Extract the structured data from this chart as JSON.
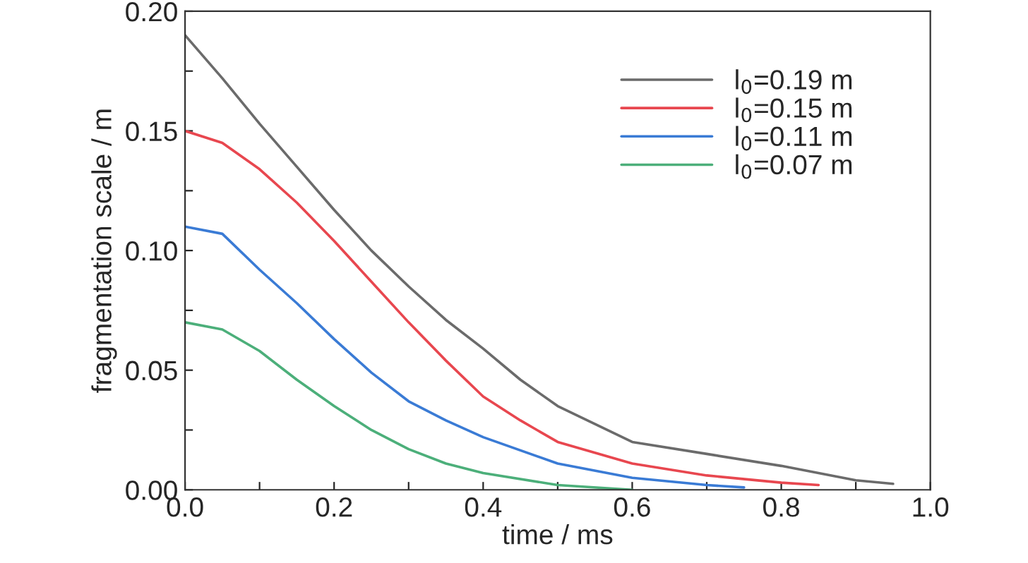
{
  "chart_data": {
    "type": "line",
    "xlabel": "time / ms",
    "ylabel": "fragmentation scale / m",
    "xlim": [
      0,
      1.0
    ],
    "ylim": [
      0,
      0.2
    ],
    "xticks": [
      {
        "value": 0,
        "label": "0.0"
      },
      {
        "value": 0.1,
        "label": null
      },
      {
        "value": 0.2,
        "label": "0.2"
      },
      {
        "value": 0.3,
        "label": null
      },
      {
        "value": 0.4,
        "label": "0.4"
      },
      {
        "value": 0.5,
        "label": null
      },
      {
        "value": 0.6,
        "label": "0.6"
      },
      {
        "value": 0.7,
        "label": null
      },
      {
        "value": 0.8,
        "label": "0.8"
      },
      {
        "value": 0.9,
        "label": null
      },
      {
        "value": 1.0,
        "label": "1.0"
      }
    ],
    "yticks": [
      {
        "value": 0,
        "label": "0.00"
      },
      {
        "value": 0.025,
        "label": null
      },
      {
        "value": 0.05,
        "label": "0.05"
      },
      {
        "value": 0.075,
        "label": null
      },
      {
        "value": 0.1,
        "label": "0.10"
      },
      {
        "value": 0.125,
        "label": null
      },
      {
        "value": 0.15,
        "label": "0.15"
      },
      {
        "value": 0.175,
        "label": null
      },
      {
        "value": 0.2,
        "label": "0.20"
      }
    ],
    "grid": false,
    "legend": "top right",
    "marker": "none",
    "line_style": "solid",
    "series": [
      {
        "name": "l$_{0}$=0.19 m",
        "color": "#6b6b6b",
        "x": [
          0,
          0.05,
          0.1,
          0.15,
          0.2,
          0.25,
          0.3,
          0.35,
          0.4,
          0.45,
          0.5,
          0.6,
          0.7,
          0.8,
          0.9,
          0.95
        ],
        "values": [
          0.19,
          0.172,
          0.153,
          0.135,
          0.117,
          0.1,
          0.085,
          0.071,
          0.059,
          0.046,
          0.035,
          0.02,
          0.015,
          0.01,
          0.004,
          0.0025
        ]
      },
      {
        "name": "l$_{0}$=0.15 m",
        "color": "#e8474f",
        "x": [
          0,
          0.05,
          0.1,
          0.15,
          0.2,
          0.25,
          0.3,
          0.35,
          0.4,
          0.45,
          0.5,
          0.6,
          0.7,
          0.8,
          0.85
        ],
        "values": [
          0.15,
          0.145,
          0.134,
          0.12,
          0.104,
          0.087,
          0.07,
          0.054,
          0.039,
          0.029,
          0.02,
          0.011,
          0.006,
          0.003,
          0.002
        ]
      },
      {
        "name": "l$_{0}$=0.11 m",
        "color": "#3a7bd5",
        "x": [
          0,
          0.05,
          0.1,
          0.15,
          0.2,
          0.25,
          0.3,
          0.35,
          0.4,
          0.5,
          0.6,
          0.7,
          0.75
        ],
        "values": [
          0.11,
          0.107,
          0.092,
          0.078,
          0.063,
          0.049,
          0.037,
          0.029,
          0.022,
          0.011,
          0.005,
          0.002,
          0.001
        ]
      },
      {
        "name": "l$_{0}$=0.07 m",
        "color": "#4caf7a",
        "x": [
          0,
          0.05,
          0.1,
          0.15,
          0.2,
          0.25,
          0.3,
          0.35,
          0.4,
          0.5,
          0.6
        ],
        "values": [
          0.07,
          0.067,
          0.058,
          0.046,
          0.035,
          0.025,
          0.017,
          0.011,
          0.007,
          0.002,
          0.0
        ]
      }
    ]
  }
}
